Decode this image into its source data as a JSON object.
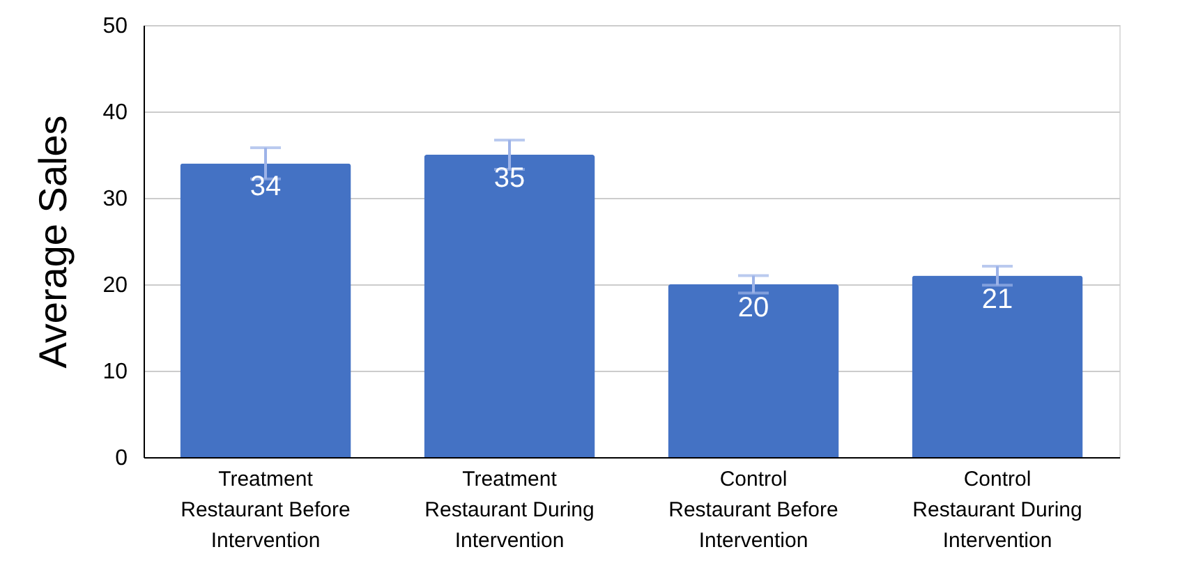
{
  "chart_data": {
    "type": "bar",
    "ylabel": "Average Sales",
    "categories": [
      "Treatment Restaurant Before Intervention",
      "Treatment Restaurant During Intervention",
      "Control Restaurant Before Intervention",
      "Control Restaurant During Intervention"
    ],
    "values": [
      34,
      35,
      20,
      21
    ],
    "errors": [
      1.8,
      1.7,
      1,
      1.1
    ],
    "color": "#4472c4",
    "ylim": [
      0,
      50
    ],
    "yticks": [
      0,
      10,
      20,
      30,
      40,
      50
    ],
    "grid": "y",
    "data_labels": true,
    "legend": false
  }
}
